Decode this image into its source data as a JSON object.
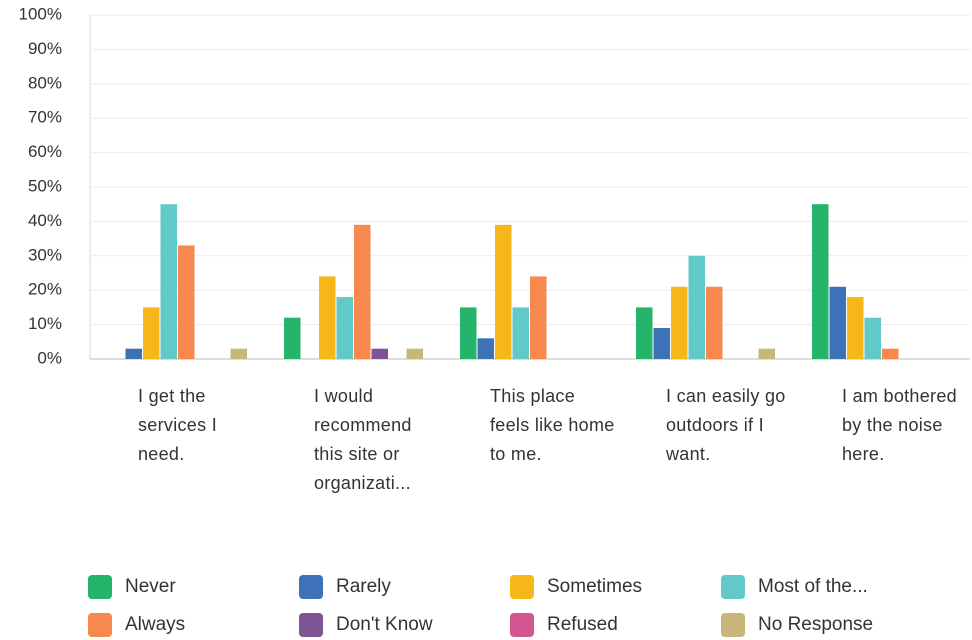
{
  "chart_data": {
    "type": "bar",
    "categories": [
      "I get the services I need.",
      "I would recommend this site or organizati...",
      "This place feels like home to me.",
      "I can easily go outdoors if I want.",
      "I am bothered by the noise here."
    ],
    "series": [
      {
        "name": "Never",
        "color": "#25b46b",
        "values": [
          0,
          12,
          15,
          15,
          45
        ]
      },
      {
        "name": "Rarely",
        "color": "#3d72b8",
        "values": [
          3,
          0,
          6,
          9,
          21
        ]
      },
      {
        "name": "Sometimes",
        "color": "#f6b71a",
        "values": [
          15,
          24,
          39,
          21,
          18
        ]
      },
      {
        "name": "Most of the...",
        "color": "#62c9c9",
        "values": [
          45,
          18,
          15,
          30,
          12
        ]
      },
      {
        "name": "Always",
        "color": "#f7894e",
        "values": [
          33,
          39,
          24,
          21,
          3
        ]
      },
      {
        "name": "Don't Know",
        "color": "#7d5494",
        "values": [
          0,
          3,
          0,
          0,
          0
        ]
      },
      {
        "name": "Refused",
        "color": "#d2568f",
        "values": [
          0,
          0,
          0,
          0,
          0
        ]
      },
      {
        "name": "No Response",
        "color": "#c8b77a",
        "values": [
          3,
          3,
          0,
          3,
          0
        ]
      }
    ],
    "ylim": [
      0,
      100
    ],
    "yticks": [
      {
        "value": 0,
        "label": "0%"
      },
      {
        "value": 10,
        "label": "10%"
      },
      {
        "value": 20,
        "label": "20%"
      },
      {
        "value": 30,
        "label": "30%"
      },
      {
        "value": 40,
        "label": "40%"
      },
      {
        "value": 50,
        "label": "50%"
      },
      {
        "value": 60,
        "label": "60%"
      },
      {
        "value": 70,
        "label": "70%"
      },
      {
        "value": 80,
        "label": "80%"
      },
      {
        "value": 90,
        "label": "90%"
      },
      {
        "value": 100,
        "label": "100%"
      }
    ],
    "grid": true
  }
}
